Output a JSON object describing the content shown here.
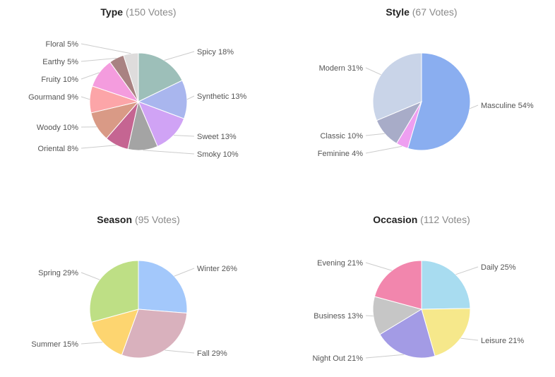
{
  "chart_data": [
    {
      "type": "pie",
      "title": "Type",
      "votes": "(150 Votes)",
      "slices": [
        {
          "label": "Spicy",
          "value": 18,
          "pct": "18%",
          "color": "#9dbfb9"
        },
        {
          "label": "Synthetic",
          "value": 13,
          "pct": "13%",
          "color": "#a9b6ee"
        },
        {
          "label": "Sweet",
          "value": 13,
          "pct": "13%",
          "color": "#d0a3f5"
        },
        {
          "label": "Smoky",
          "value": 10,
          "pct": "10%",
          "color": "#a4a4a4"
        },
        {
          "label": "Oriental",
          "value": 8,
          "pct": "8%",
          "color": "#c56592"
        },
        {
          "label": "Woody",
          "value": 10,
          "pct": "10%",
          "color": "#d99a86"
        },
        {
          "label": "Gourmand",
          "value": 9,
          "pct": "9%",
          "color": "#fca5a8"
        },
        {
          "label": "Fruity",
          "value": 10,
          "pct": "10%",
          "color": "#f49cde"
        },
        {
          "label": "Earthy",
          "value": 5,
          "pct": "5%",
          "color": "#a98282"
        },
        {
          "label": "Floral",
          "value": 5,
          "pct": "5%",
          "color": "#dedcdc"
        }
      ]
    },
    {
      "type": "pie",
      "title": "Style",
      "votes": "(67 Votes)",
      "slices": [
        {
          "label": "Masculine",
          "value": 54,
          "pct": "54%",
          "color": "#8aaef0"
        },
        {
          "label": "Feminine",
          "value": 4,
          "pct": "4%",
          "color": "#ee9ff1"
        },
        {
          "label": "Classic",
          "value": 10,
          "pct": "10%",
          "color": "#a8acc8"
        },
        {
          "label": "Modern",
          "value": 31,
          "pct": "31%",
          "color": "#c9d4e8"
        }
      ]
    },
    {
      "type": "pie",
      "title": "Season",
      "votes": "(95 Votes)",
      "slices": [
        {
          "label": "Winter",
          "value": 26,
          "pct": "26%",
          "color": "#a3c8fb"
        },
        {
          "label": "Fall",
          "value": 29,
          "pct": "29%",
          "color": "#d9b1bd"
        },
        {
          "label": "Summer",
          "value": 15,
          "pct": "15%",
          "color": "#fdd570"
        },
        {
          "label": "Spring",
          "value": 29,
          "pct": "29%",
          "color": "#bedf85"
        }
      ]
    },
    {
      "type": "pie",
      "title": "Occasion",
      "votes": "(112 Votes)",
      "slices": [
        {
          "label": "Daily",
          "value": 25,
          "pct": "25%",
          "color": "#a8dcf0"
        },
        {
          "label": "Leisure",
          "value": 21,
          "pct": "21%",
          "color": "#f6e88b"
        },
        {
          "label": "Night Out",
          "value": 21,
          "pct": "21%",
          "color": "#a39be5"
        },
        {
          "label": "Business",
          "value": 13,
          "pct": "13%",
          "color": "#c6c6c6"
        },
        {
          "label": "Evening",
          "value": 21,
          "pct": "21%",
          "color": "#f286ad"
        }
      ]
    }
  ]
}
